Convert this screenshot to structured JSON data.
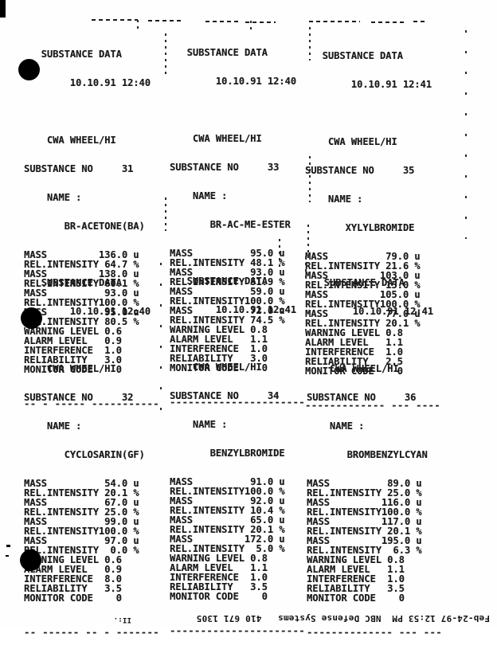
{
  "labels": {
    "mass": "MASS",
    "rel_intensity": "REL.INTENSITY",
    "substance_no": "SUBSTANCE NO",
    "name_label": "NAME :",
    "mass_unit": "u",
    "intensity_unit": "%"
  },
  "footer": {
    "fax_line": "Feb-24-97 12:53 PM  NBC Defense Systems   410 671 1305",
    "fragment": "II:."
  },
  "blocks": [
    {
      "title": "SUBSTANCE DATA",
      "datetime": "10.10.91 12:40",
      "device": "CWA WHEEL/HI",
      "substance_no": "31",
      "name": "BR-ACETONE(BA)",
      "peaks": [
        {
          "mass": "136.0",
          "intensity": "64.7"
        },
        {
          "mass": "138.0",
          "intensity": "60.1"
        },
        {
          "mass": "93.0",
          "intensity": "100.0"
        },
        {
          "mass": "95.0",
          "intensity": "80.5"
        }
      ],
      "levels": [
        {
          "label": "WARNING LEVEL",
          "value": "0.6"
        },
        {
          "label": "ALARM LEVEL",
          "value": "0.9"
        },
        {
          "label": "INTERFERENCE",
          "value": "1.0"
        },
        {
          "label": "RELIABILITY",
          "value": "3.0"
        },
        {
          "label": "MONITOR CODE",
          "value": "0"
        }
      ],
      "separator": "-- - ----- -----------"
    },
    {
      "title": "SUBSTANCE DATA",
      "datetime": "10.10.91 12:40",
      "device": "CWA WHEEL/HI",
      "substance_no": "33",
      "name": "BR-AC-ME-ESTER",
      "peaks": [
        {
          "mass": "95.0",
          "intensity": "48.1"
        },
        {
          "mass": "93.0",
          "intensity": "51.9"
        },
        {
          "mass": "59.0",
          "intensity": "100.0"
        },
        {
          "mass": "72.0",
          "intensity": "74.5"
        }
      ],
      "levels": [
        {
          "label": "WARNING LEVEL",
          "value": "0.8"
        },
        {
          "label": "ALARM LEVEL",
          "value": "1.1"
        },
        {
          "label": "INTERFERENCE",
          "value": "1.0"
        },
        {
          "label": "RELIABILITY",
          "value": "3.0"
        },
        {
          "label": "MONITOR CODE",
          "value": "0"
        }
      ],
      "separator": "----------------------"
    },
    {
      "title": "SUBSTANCE DATA",
      "datetime": "10.10.91 12:41",
      "device": "CWA WHEEL/HI",
      "substance_no": "35",
      "name": "XYLYLBROMIDE",
      "peaks": [
        {
          "mass": "79.0",
          "intensity": "21.6"
        },
        {
          "mass": "103.0",
          "intensity": "15.0"
        },
        {
          "mass": "105.0",
          "intensity": "100.0"
        },
        {
          "mass": "77.0",
          "intensity": "20.1"
        }
      ],
      "levels": [
        {
          "label": "WARNING LEVEL",
          "value": "0.8"
        },
        {
          "label": "ALARM LEVEL",
          "value": "1.1"
        },
        {
          "label": "INTERFERENCE",
          "value": "1.0"
        },
        {
          "label": "RELIABILITY",
          "value": "2.5"
        },
        {
          "label": "MONITOR CODE",
          "value": "0"
        }
      ],
      "separator": "------------- --- ----"
    },
    {
      "title": "SUBSTANCE DATA",
      "datetime": "10.10.91 12:40",
      "device": "CWA WHEEL/HI",
      "substance_no": "32",
      "name": "CYCLOSARIN(GF)",
      "peaks": [
        {
          "mass": "54.0",
          "intensity": "20.1"
        },
        {
          "mass": "67.0",
          "intensity": "25.0"
        },
        {
          "mass": "99.0",
          "intensity": "100.0"
        },
        {
          "mass": "97.0",
          "intensity": "0.0"
        }
      ],
      "levels": [
        {
          "label": "WARNING LEVEL",
          "value": "0.6"
        },
        {
          "label": "ALARM LEVEL",
          "value": "0.9"
        },
        {
          "label": "INTERFERENCE",
          "value": "8.0"
        },
        {
          "label": "RELIABILITY",
          "value": "3.5"
        },
        {
          "label": "MONITOR CODE",
          "value": "0"
        }
      ],
      "separator": "-- ------ -- - -------"
    },
    {
      "title": "SUBSTANCE DATA",
      "datetime": "10.10.91 12:41",
      "device": "CWA WHEEL/HI",
      "substance_no": "34",
      "name": "BENZYLBROMIDE",
      "peaks": [
        {
          "mass": "91.0",
          "intensity": "100.0"
        },
        {
          "mass": "92.0",
          "intensity": "10.4"
        },
        {
          "mass": "65.0",
          "intensity": "20.1"
        },
        {
          "mass": "172.0",
          "intensity": "5.0"
        }
      ],
      "levels": [
        {
          "label": "WARNING LEVEL",
          "value": "0.8"
        },
        {
          "label": "ALARM LEVEL",
          "value": "1.1"
        },
        {
          "label": "INTERFERENCE",
          "value": "1.0"
        },
        {
          "label": "RELIABILITY",
          "value": "3.5"
        },
        {
          "label": "MONITOR CODE",
          "value": "0"
        }
      ],
      "separator": "----------------------"
    },
    {
      "title": "SUBSTANCE DATA",
      "datetime": "10.10.91 12:41",
      "device": "CWA WHEEL/HI",
      "substance_no": "36",
      "name": "BROMBENZYLCYAN",
      "peaks": [
        {
          "mass": "89.0",
          "intensity": "25.0"
        },
        {
          "mass": "116.0",
          "intensity": "100.0"
        },
        {
          "mass": "117.0",
          "intensity": "20.1"
        },
        {
          "mass": "195.0",
          "intensity": "6.3"
        }
      ],
      "levels": [
        {
          "label": "WARNING LEVEL",
          "value": "0.8"
        },
        {
          "label": "ALARM LEVEL",
          "value": "1.1"
        },
        {
          "label": "INTERFERENCE",
          "value": "1.0"
        },
        {
          "label": "RELIABILITY",
          "value": "3.5"
        },
        {
          "label": "MONITOR CODE",
          "value": "0"
        }
      ],
      "separator": "-------------- --- ---"
    }
  ]
}
